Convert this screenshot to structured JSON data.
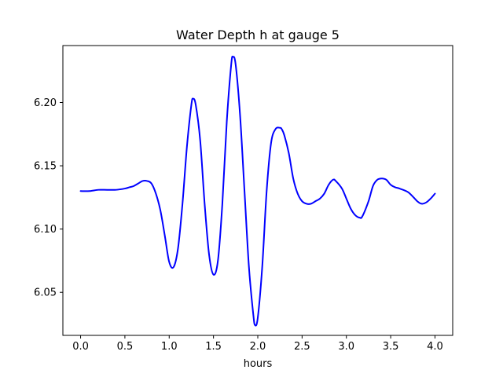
{
  "chart_data": {
    "type": "line",
    "title": "Water Depth h at gauge 5",
    "xlabel": "hours",
    "ylabel": "",
    "xlim": [
      -0.2,
      4.2
    ],
    "ylim": [
      6.016,
      6.245
    ],
    "xticks": [
      0.0,
      0.5,
      1.0,
      1.5,
      2.0,
      2.5,
      3.0,
      3.5,
      4.0
    ],
    "xtick_labels": [
      "0.0",
      "0.5",
      "1.0",
      "1.5",
      "2.0",
      "2.5",
      "3.0",
      "3.5",
      "4.0"
    ],
    "yticks": [
      6.05,
      6.1,
      6.15,
      6.2
    ],
    "ytick_labels": [
      "6.05",
      "6.10",
      "6.15",
      "6.20"
    ],
    "grid": false,
    "legend": "none",
    "series": [
      {
        "color": "#0000ff",
        "x": [
          0.0,
          0.1,
          0.2,
          0.3,
          0.4,
          0.5,
          0.55,
          0.6,
          0.65,
          0.7,
          0.75,
          0.8,
          0.85,
          0.9,
          0.95,
          1.0,
          1.05,
          1.1,
          1.15,
          1.2,
          1.25,
          1.27,
          1.3,
          1.35,
          1.4,
          1.45,
          1.5,
          1.55,
          1.6,
          1.65,
          1.7,
          1.72,
          1.75,
          1.8,
          1.85,
          1.9,
          1.95,
          1.97,
          2.0,
          2.05,
          2.1,
          2.15,
          2.2,
          2.25,
          2.27,
          2.3,
          2.35,
          2.4,
          2.45,
          2.5,
          2.55,
          2.6,
          2.65,
          2.7,
          2.75,
          2.8,
          2.85,
          2.88,
          2.95,
          3.0,
          3.05,
          3.1,
          3.15,
          3.18,
          3.25,
          3.3,
          3.35,
          3.4,
          3.45,
          3.5,
          3.55,
          3.6,
          3.7,
          3.8,
          3.85,
          3.9,
          3.95,
          4.0
        ],
        "y": [
          6.13,
          6.13,
          6.131,
          6.131,
          6.131,
          6.132,
          6.133,
          6.134,
          6.136,
          6.138,
          6.138,
          6.136,
          6.128,
          6.115,
          6.095,
          6.074,
          6.07,
          6.085,
          6.12,
          6.165,
          6.198,
          6.203,
          6.198,
          6.17,
          6.12,
          6.08,
          6.064,
          6.075,
          6.12,
          6.185,
          6.23,
          6.236,
          6.23,
          6.19,
          6.13,
          6.07,
          6.032,
          6.024,
          6.03,
          6.07,
          6.13,
          6.168,
          6.179,
          6.18,
          6.179,
          6.174,
          6.16,
          6.14,
          6.128,
          6.122,
          6.12,
          6.12,
          6.122,
          6.124,
          6.128,
          6.135,
          6.139,
          6.138,
          6.132,
          6.124,
          6.116,
          6.111,
          6.109,
          6.11,
          6.122,
          6.134,
          6.139,
          6.14,
          6.139,
          6.135,
          6.133,
          6.132,
          6.129,
          6.122,
          6.12,
          6.121,
          6.124,
          6.128
        ]
      }
    ]
  }
}
